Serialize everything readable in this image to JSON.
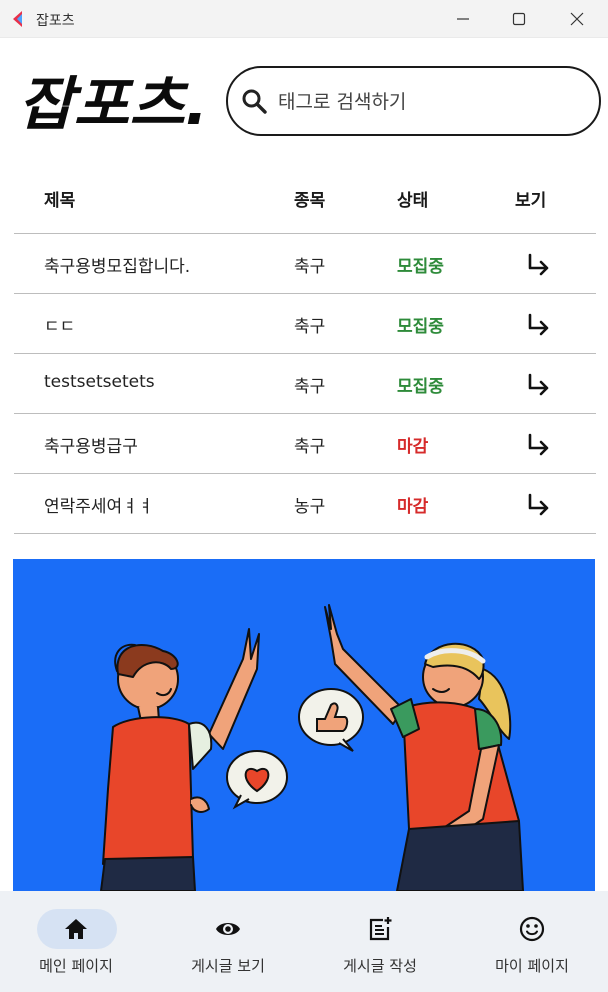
{
  "window": {
    "title": "잡포츠"
  },
  "header": {
    "logo_text": "잡포츠.",
    "search_placeholder": "태그로 검색하기"
  },
  "table": {
    "columns": [
      "제목",
      "종목",
      "상태",
      "보기"
    ],
    "rows": [
      {
        "title": "축구용병모집합니다.",
        "sport": "축구",
        "status": "모집중",
        "status_type": "open"
      },
      {
        "title": "ㄷㄷ",
        "sport": "축구",
        "status": "모집중",
        "status_type": "open"
      },
      {
        "title": "testsetsetets",
        "sport": "축구",
        "status": "모집중",
        "status_type": "open"
      },
      {
        "title": "축구용병급구",
        "sport": "축구",
        "status": "마감",
        "status_type": "closed"
      },
      {
        "title": "연락주세여ㅕㅕ",
        "sport": "농구",
        "status": "마감",
        "status_type": "closed"
      }
    ]
  },
  "colors": {
    "open": "#2e8b3a",
    "closed": "#d62b2b",
    "banner_bg": "#1a6df7",
    "nav_active": "#d6e2f3"
  },
  "bottom_nav": {
    "items": [
      {
        "label": "메인 페이지",
        "icon": "home-icon",
        "active": true
      },
      {
        "label": "게시글 보기",
        "icon": "eye-icon",
        "active": false
      },
      {
        "label": "게시글 작성",
        "icon": "post-add-icon",
        "active": false
      },
      {
        "label": "마이 페이지",
        "icon": "smiley-icon",
        "active": false
      }
    ]
  }
}
